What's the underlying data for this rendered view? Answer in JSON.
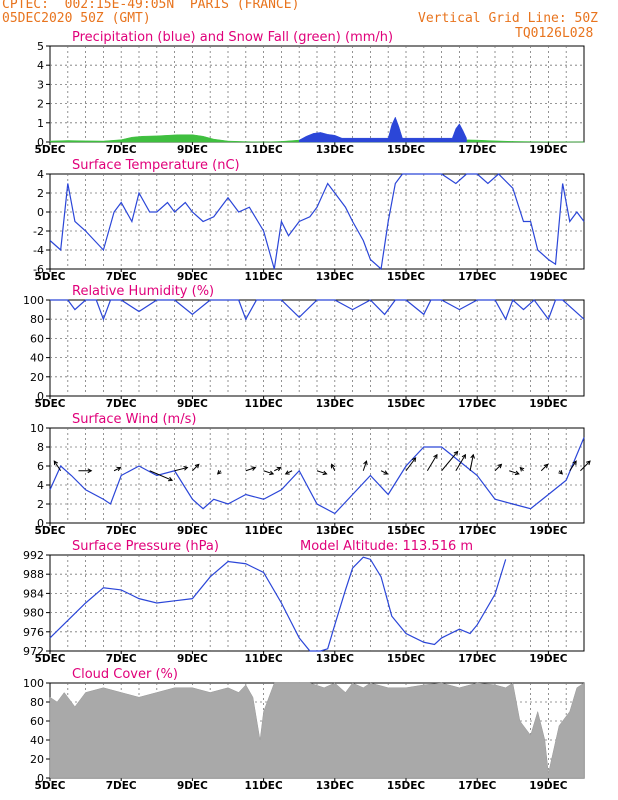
{
  "header": {
    "source_line": "CPTEC:  002:15E-49:05N  PARIS (FRANCE)",
    "date_line": "05DEC2020 50Z (GMT)",
    "grid_line": "Vertical Grid Line: 50Z",
    "code": "TQ0126L028"
  },
  "colors": {
    "header": "#e8741e",
    "panel_title": "#e0007a",
    "line": "#2b46d8",
    "snow": "#3fbf3f",
    "cloud": "#a9a9a9"
  },
  "x_axis": {
    "range_days": [
      5,
      20
    ],
    "tick_labels": [
      "5DEC",
      "7DEC",
      "9DEC",
      "11DEC",
      "13DEC",
      "15DEC",
      "17DEC",
      "19DEC"
    ],
    "tick_days": [
      5,
      7,
      9,
      11,
      13,
      15,
      17,
      19
    ]
  },
  "chart_data": [
    {
      "id": "precip",
      "type": "bar",
      "title": "Precipitation (blue) and Snow Fall (green) (mm/h)",
      "ylim": [
        0,
        5
      ],
      "yticks": [
        "0",
        "1",
        "2",
        "3",
        "4",
        "5"
      ],
      "grid": true,
      "series": [
        {
          "color": "snow",
          "x": [
            5.0,
            5.5,
            6.0,
            6.5,
            7.0,
            7.3,
            7.6,
            8.0,
            8.3,
            8.6,
            9.0,
            9.3,
            9.6,
            10.0,
            10.5,
            11.0,
            11.5,
            12.0,
            12.3,
            12.6,
            13.0,
            13.5,
            14.0,
            15.0,
            16.0,
            16.5,
            17.0,
            17.5,
            18.0,
            19.0,
            20.0
          ],
          "y": [
            0.05,
            0.08,
            0.06,
            0.05,
            0.12,
            0.25,
            0.3,
            0.32,
            0.35,
            0.38,
            0.38,
            0.3,
            0.15,
            0.05,
            0.02,
            0.0,
            0.03,
            0.1,
            0.28,
            0.2,
            0.15,
            0.05,
            0.02,
            0.02,
            0.05,
            0.12,
            0.1,
            0.06,
            0.03,
            0.01,
            0.0
          ]
        },
        {
          "color": "line",
          "x": [
            12.0,
            12.2,
            12.4,
            12.6,
            12.8,
            13.0,
            13.2,
            14.5,
            14.6,
            14.7,
            14.8,
            14.9,
            16.3,
            16.4,
            16.5,
            16.6,
            16.7
          ],
          "y": [
            0.1,
            0.3,
            0.45,
            0.5,
            0.4,
            0.35,
            0.2,
            0.2,
            0.9,
            1.3,
            0.8,
            0.2,
            0.2,
            0.7,
            0.95,
            0.6,
            0.2
          ]
        }
      ]
    },
    {
      "id": "temp",
      "type": "line",
      "title": "Surface Temperature (nC)",
      "ylim": [
        -6,
        4
      ],
      "yticks": [
        "-6",
        "-4",
        "-2",
        "0",
        "2",
        "4"
      ],
      "grid": true,
      "x": [
        5.0,
        5.3,
        5.5,
        5.7,
        6.0,
        6.5,
        6.8,
        7.0,
        7.3,
        7.5,
        7.8,
        8.0,
        8.3,
        8.5,
        8.8,
        9.0,
        9.3,
        9.6,
        10.0,
        10.3,
        10.6,
        11.0,
        11.3,
        11.5,
        11.7,
        12.0,
        12.3,
        12.5,
        12.8,
        13.0,
        13.3,
        13.5,
        13.8,
        14.0,
        14.3,
        14.5,
        14.7,
        14.9,
        15.5,
        16.0,
        16.4,
        16.7,
        17.0,
        17.3,
        17.6,
        18.0,
        18.3,
        18.5,
        18.7,
        19.0,
        19.2,
        19.4,
        19.6,
        19.8,
        20.0
      ],
      "y": [
        -3.0,
        -4.0,
        3.0,
        -1.0,
        -2.0,
        -4.0,
        0.0,
        1.0,
        -1.0,
        2.0,
        0.0,
        0.0,
        1.0,
        0.0,
        1.0,
        0.0,
        -1.0,
        -0.5,
        1.5,
        0.0,
        0.5,
        -2.0,
        -6.0,
        -1.0,
        -2.5,
        -1.0,
        -0.5,
        0.5,
        3.0,
        2.0,
        0.5,
        -1.0,
        -3.0,
        -5.0,
        -6.0,
        -1.0,
        3.0,
        4.0,
        4.0,
        4.0,
        3.0,
        4.0,
        4.0,
        3.0,
        4.0,
        2.5,
        -1.0,
        -1.0,
        -4.0,
        -5.0,
        -5.5,
        3.0,
        -1.0,
        0.0,
        -1.0
      ]
    },
    {
      "id": "rh",
      "type": "line",
      "title": "Relative Humidity (%)",
      "ylim": [
        0,
        100
      ],
      "yticks": [
        "0",
        "20",
        "40",
        "60",
        "80",
        "100"
      ],
      "grid": true,
      "x": [
        5.0,
        5.5,
        5.7,
        6.0,
        6.3,
        6.5,
        6.7,
        7.0,
        7.5,
        8.0,
        8.5,
        9.0,
        9.5,
        10.0,
        10.3,
        10.5,
        10.8,
        11.0,
        11.5,
        12.0,
        12.5,
        13.0,
        13.5,
        14.0,
        14.4,
        14.7,
        15.0,
        15.5,
        15.7,
        16.0,
        16.5,
        17.0,
        17.5,
        17.8,
        18.0,
        18.3,
        18.6,
        19.0,
        19.2,
        19.4,
        19.7,
        20.0
      ],
      "y": [
        100,
        100,
        90,
        100,
        100,
        80,
        100,
        100,
        88,
        100,
        100,
        85,
        100,
        100,
        100,
        80,
        100,
        100,
        100,
        82,
        100,
        100,
        90,
        100,
        85,
        100,
        100,
        85,
        100,
        100,
        90,
        100,
        100,
        80,
        100,
        90,
        100,
        80,
        100,
        100,
        90,
        80
      ]
    },
    {
      "id": "wind",
      "type": "line",
      "title": "Surface Wind (m/s)",
      "ylim": [
        0,
        10
      ],
      "yticks": [
        "0",
        "2",
        "4",
        "6",
        "8",
        "10"
      ],
      "grid": true,
      "x": [
        5.0,
        5.3,
        5.6,
        6.0,
        6.5,
        6.7,
        7.0,
        7.5,
        8.0,
        8.5,
        9.0,
        9.3,
        9.6,
        10.0,
        10.5,
        11.0,
        11.5,
        12.0,
        12.5,
        13.0,
        13.5,
        14.0,
        14.5,
        15.0,
        15.5,
        16.0,
        16.5,
        17.0,
        17.5,
        18.0,
        18.5,
        19.0,
        19.5,
        20.0
      ],
      "y": [
        3.5,
        6.0,
        5.0,
        3.5,
        2.5,
        2.0,
        5.0,
        6.0,
        5.0,
        5.5,
        2.5,
        1.5,
        2.5,
        2.0,
        3.0,
        2.5,
        3.5,
        5.5,
        2.0,
        1.0,
        3.0,
        5.0,
        3.0,
        6.0,
        8.0,
        8.0,
        6.5,
        5.0,
        2.5,
        2.0,
        1.5,
        3.0,
        4.5,
        9.0
      ],
      "arrow_x": [
        5.3,
        5.8,
        6.8,
        7.8,
        8.5,
        9.0,
        9.8,
        10.5,
        11.0,
        11.3,
        11.8,
        12.5,
        13.0,
        13.8,
        14.3,
        15.0,
        15.6,
        16.0,
        16.4,
        16.8,
        17.5,
        17.9,
        18.3,
        18.8,
        19.3,
        19.6,
        19.9
      ],
      "arrow_u": [
        -2,
        4,
        2,
        7,
        4,
        2,
        -1,
        3,
        3,
        2,
        -2,
        3,
        -1,
        1,
        2,
        3,
        3,
        5,
        3,
        1,
        2,
        3,
        -1,
        2,
        1,
        2,
        3
      ],
      "arrow_v": [
        3,
        0,
        1,
        -3,
        1,
        2,
        -1,
        1,
        -1,
        1,
        -1,
        -1,
        2,
        3,
        -1,
        4,
        5,
        6,
        5,
        5,
        2,
        -1,
        1,
        2,
        -1,
        3,
        3
      ]
    },
    {
      "id": "pres",
      "type": "line",
      "title": "Surface Pressure (hPa)",
      "annotation": "Model Altitude: 113.516  m",
      "ylim": [
        972,
        994
      ],
      "yticks": [
        "972",
        "976",
        "980",
        "984",
        "988",
        "992"
      ],
      "grid": true,
      "x": [
        5.0,
        5.5,
        6.0,
        6.5,
        7.0,
        7.5,
        8.0,
        8.5,
        9.0,
        9.5,
        10.0,
        10.5,
        11.0,
        11.5,
        12.0,
        12.3,
        12.6,
        12.8,
        13.0,
        13.3,
        13.5,
        13.8,
        14.0,
        14.3,
        14.6,
        15.0,
        15.5,
        15.8,
        16.0,
        16.5,
        16.8,
        17.0,
        17.5,
        17.8
      ],
      "y": [
        975,
        979,
        983,
        986.5,
        986,
        984,
        983,
        983.5,
        984,
        989,
        992.5,
        992,
        990,
        983,
        975,
        972,
        972,
        972.5,
        978,
        986,
        991,
        993.5,
        993,
        989,
        980,
        976,
        974,
        973.5,
        975,
        977,
        976,
        978,
        985,
        993
      ]
    },
    {
      "id": "cloud",
      "type": "area",
      "title": "Cloud Cover (%)",
      "ylim": [
        0,
        100
      ],
      "yticks": [
        "0",
        "20",
        "40",
        "60",
        "80",
        "100"
      ],
      "grid": true,
      "x": [
        5.0,
        5.2,
        5.4,
        5.5,
        5.7,
        6.0,
        6.5,
        7.0,
        7.5,
        8.0,
        8.5,
        9.0,
        9.5,
        10.0,
        10.3,
        10.5,
        10.7,
        10.9,
        11.0,
        11.3,
        11.7,
        12.0,
        12.3,
        12.7,
        13.0,
        13.3,
        13.5,
        13.8,
        14.0,
        14.5,
        15.0,
        15.5,
        16.0,
        16.5,
        17.0,
        17.5,
        17.8,
        18.0,
        18.2,
        18.5,
        18.7,
        18.9,
        19.0,
        19.3,
        19.6,
        19.8,
        20.0
      ],
      "y": [
        85,
        80,
        90,
        85,
        75,
        90,
        95,
        90,
        85,
        90,
        95,
        95,
        90,
        95,
        90,
        98,
        85,
        40,
        70,
        100,
        100,
        100,
        100,
        95,
        100,
        90,
        100,
        95,
        100,
        95,
        95,
        98,
        100,
        95,
        100,
        98,
        95,
        100,
        60,
        45,
        70,
        40,
        5,
        55,
        70,
        95,
        100
      ]
    }
  ]
}
